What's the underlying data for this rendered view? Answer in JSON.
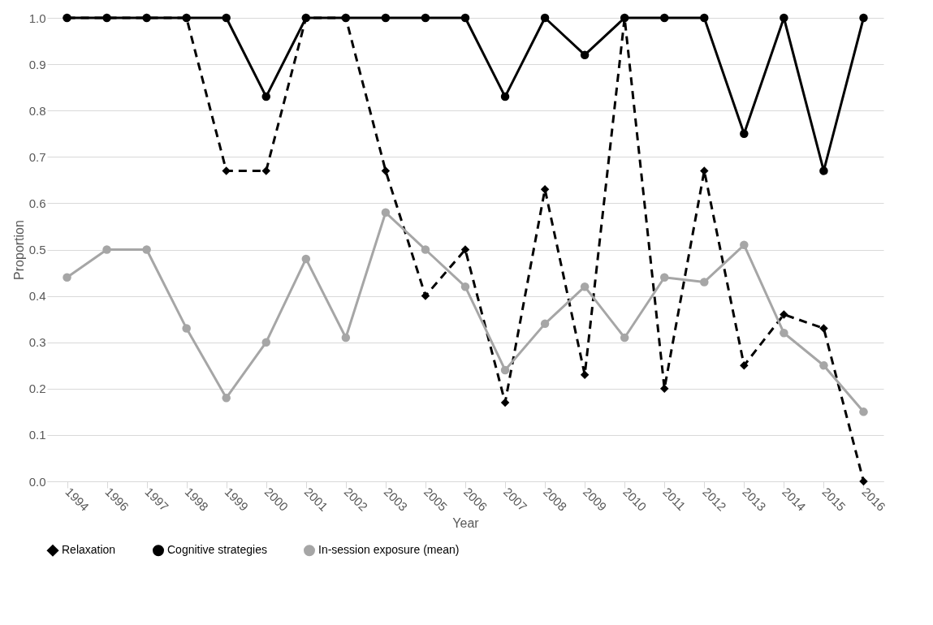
{
  "chart_data": {
    "type": "line",
    "xlabel": "Year",
    "ylabel": "Proportion",
    "categories": [
      "1994",
      "1996",
      "1997",
      "1998",
      "1999",
      "2000",
      "2001",
      "2002",
      "2003",
      "2005",
      "2006",
      "2007",
      "2008",
      "2009",
      "2010",
      "2011",
      "2012",
      "2013",
      "2014",
      "2015",
      "2016"
    ],
    "series": [
      {
        "name": "Relaxation",
        "color": "#000000",
        "marker": "diamond",
        "line_style": "dashed",
        "values": [
          1,
          1,
          1,
          1,
          0.67,
          0.67,
          1,
          1,
          0.67,
          0.4,
          0.5,
          0.17,
          0.63,
          0.23,
          1,
          0.2,
          0.67,
          0.25,
          0.36,
          0.33,
          0
        ]
      },
      {
        "name": "Cognitive strategies",
        "color": "#000000",
        "marker": "circle",
        "line_style": "solid",
        "values": [
          1,
          1,
          1,
          1,
          1,
          0.83,
          1,
          1,
          1,
          1,
          1,
          0.83,
          1,
          0.92,
          1,
          1,
          1,
          0.75,
          1,
          0.67,
          1
        ]
      },
      {
        "name": "In-session exposure (mean)",
        "color": "#a6a6a6",
        "marker": "circle",
        "line_style": "solid",
        "values": [
          0.44,
          0.5,
          0.5,
          0.33,
          0.18,
          0.3,
          0.48,
          0.31,
          0.58,
          0.5,
          0.42,
          0.24,
          0.34,
          0.42,
          0.31,
          0.44,
          0.43,
          0.51,
          0.32,
          0.25,
          0.15
        ]
      }
    ],
    "ylim": [
      0,
      1
    ],
    "yticks": [
      {
        "value": 0,
        "label": "0.0"
      },
      0.1,
      0.2,
      0.3,
      0.4,
      0.5,
      0.6,
      0.7,
      0.8,
      0.9,
      {
        "value": 1,
        "label": "1.0"
      }
    ],
    "grid": "y",
    "legend": "bottom"
  }
}
